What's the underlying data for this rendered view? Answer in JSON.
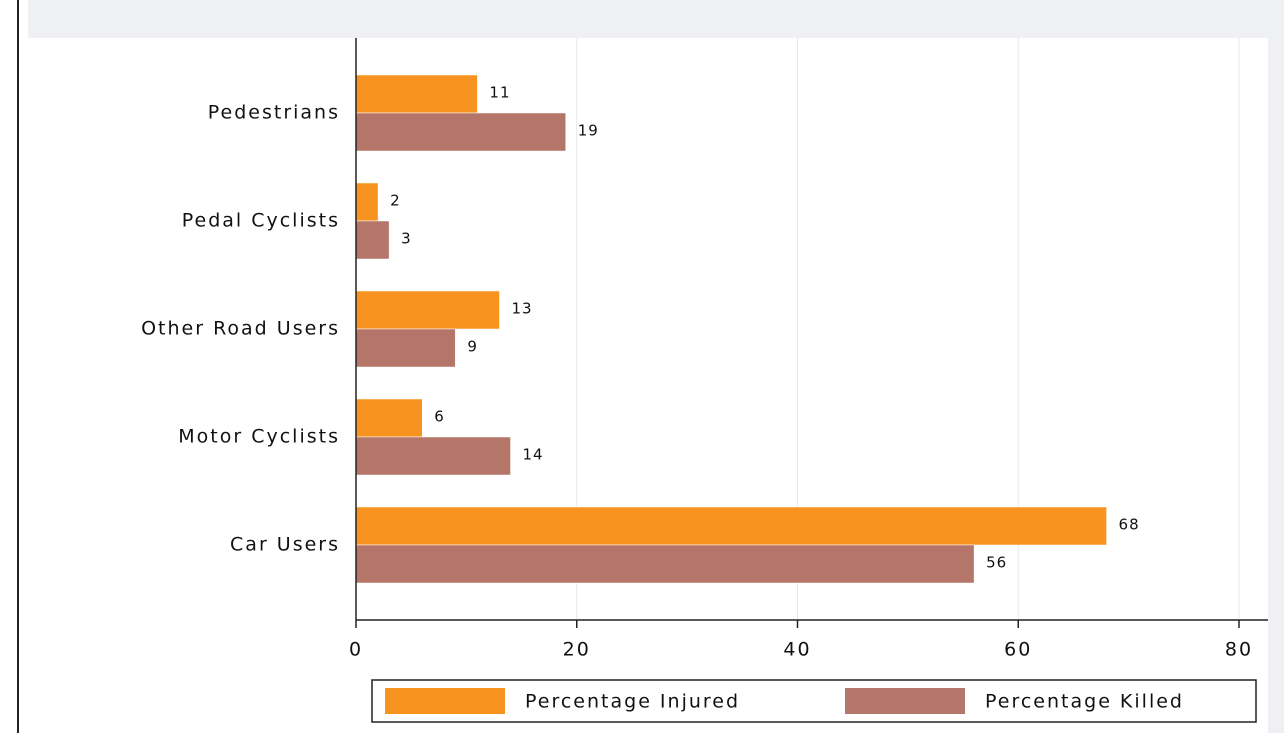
{
  "chart_data": {
    "type": "bar",
    "orientation": "horizontal",
    "categories": [
      "Pedestrians",
      "Pedal Cyclists",
      "Other Road Users",
      "Motor Cyclists",
      "Car Users"
    ],
    "series": [
      {
        "name": "Percentage Injured",
        "color": "#f7931e",
        "values": [
          11,
          2,
          13,
          6,
          68
        ]
      },
      {
        "name": "Percentage Killed",
        "color": "#b5766a",
        "values": [
          19,
          3,
          9,
          14,
          56
        ]
      }
    ],
    "xlim": [
      0,
      80
    ],
    "xticks": [
      0,
      20,
      40,
      60,
      80
    ],
    "grid": true,
    "legend": "bottom"
  }
}
